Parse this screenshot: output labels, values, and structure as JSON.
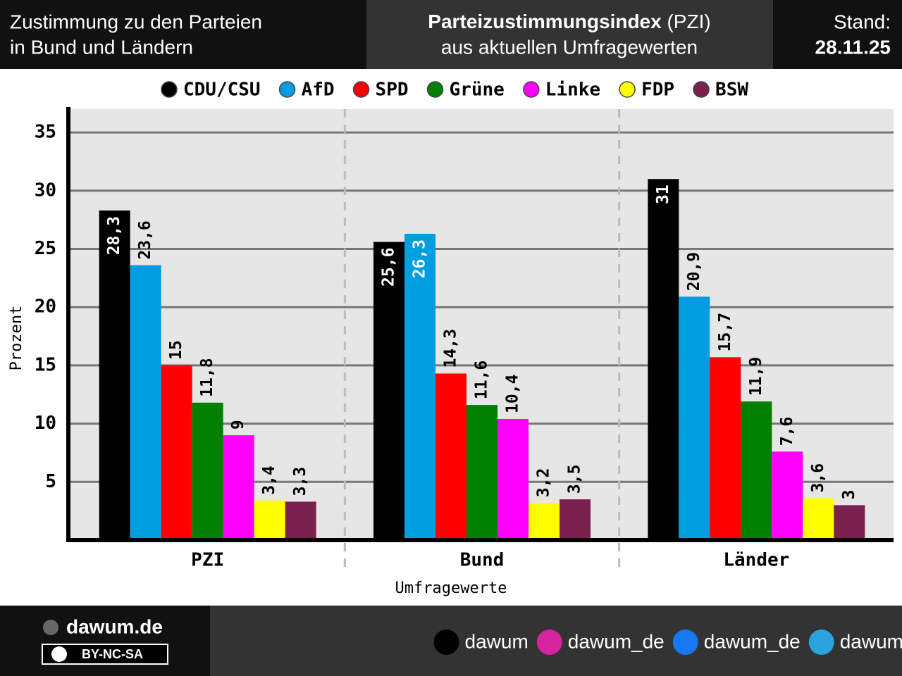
{
  "header": {
    "left": [
      "Zustimmung zu den Parteien",
      "in Bund und Ländern"
    ],
    "title": "Parteizustimmungsindex",
    "title_suffix": "(PZI)",
    "subtitle": "aus aktuellen Umfragewerten",
    "date_label": "Stand:",
    "date": "28.11.25"
  },
  "chart_data": {
    "type": "bar",
    "categories": [
      "PZI",
      "Bund",
      "Länder"
    ],
    "series": [
      {
        "name": "CDU/CSU",
        "color": "#000000",
        "values": [
          28.3,
          25.6,
          31
        ],
        "value_labels": [
          "28,3",
          "25,6",
          "31"
        ]
      },
      {
        "name": "AfD",
        "color": "#009ee0",
        "values": [
          23.6,
          26.3,
          20.9
        ],
        "value_labels": [
          "23,6",
          "26,3",
          "20,9"
        ]
      },
      {
        "name": "SPD",
        "color": "#ff0000",
        "values": [
          15,
          14.3,
          15.7
        ],
        "value_labels": [
          "15",
          "14,3",
          "15,7"
        ]
      },
      {
        "name": "Grüne",
        "color": "#008000",
        "values": [
          11.8,
          11.6,
          11.9
        ],
        "value_labels": [
          "11,8",
          "11,6",
          "11,9"
        ]
      },
      {
        "name": "Linke",
        "color": "#ff00ff",
        "values": [
          9,
          10.4,
          7.6
        ],
        "value_labels": [
          "9",
          "10,4",
          "7,6"
        ]
      },
      {
        "name": "FDP",
        "color": "#ffff00",
        "values": [
          3.4,
          3.2,
          3.6
        ],
        "value_labels": [
          "3,4",
          "3,2",
          "3,6"
        ]
      },
      {
        "name": "BSW",
        "color": "#7b2150",
        "values": [
          3.3,
          3.5,
          3
        ],
        "value_labels": [
          "3,3",
          "3,5",
          "3"
        ]
      }
    ],
    "ylim": [
      0,
      37
    ],
    "yticks": [
      5,
      10,
      15,
      20,
      25,
      30,
      35
    ],
    "grid": true,
    "ylabel": "Prozent",
    "xlabel": "Umfragewerte"
  },
  "footer": {
    "site": "dawum.de",
    "license": "BY-NC-SA",
    "socials": [
      "dawum",
      "dawum_de",
      "dawum_de",
      "dawum"
    ]
  }
}
